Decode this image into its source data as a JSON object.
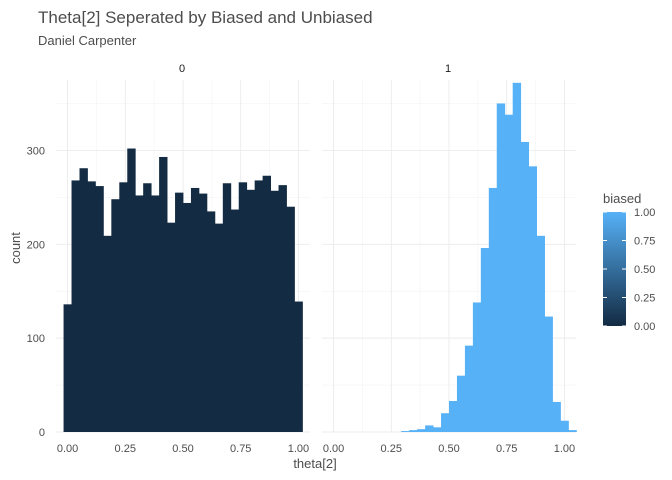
{
  "chart_data": {
    "type": "bar",
    "title": "Theta[2] Seperated by Biased and Unbiased",
    "subtitle": "Daniel Carpenter",
    "xlabel": "theta[2]",
    "ylabel": "count",
    "xlim": [
      -0.05,
      1.05
    ],
    "ylim": [
      0,
      375
    ],
    "x_ticks": [
      0,
      0.25,
      0.5,
      0.75,
      1
    ],
    "x_tick_labels": [
      "0.00",
      "0.25",
      "0.50",
      "0.75",
      "1.00"
    ],
    "y_ticks": [
      0,
      100,
      200,
      300
    ],
    "y_tick_labels": [
      "0",
      "100",
      "200",
      "300"
    ],
    "grid": true,
    "bin_width": 0.0345,
    "facets": [
      {
        "label": "0",
        "biased": 0,
        "color": "#132B43",
        "bins": [
          {
            "x": 0.0,
            "count": 136
          },
          {
            "x": 0.0345,
            "count": 268
          },
          {
            "x": 0.069,
            "count": 281
          },
          {
            "x": 0.1034,
            "count": 267
          },
          {
            "x": 0.1379,
            "count": 262
          },
          {
            "x": 0.1724,
            "count": 209
          },
          {
            "x": 0.2069,
            "count": 248
          },
          {
            "x": 0.2414,
            "count": 266
          },
          {
            "x": 0.2759,
            "count": 302
          },
          {
            "x": 0.3103,
            "count": 252
          },
          {
            "x": 0.3448,
            "count": 265
          },
          {
            "x": 0.3793,
            "count": 252
          },
          {
            "x": 0.4138,
            "count": 293
          },
          {
            "x": 0.4483,
            "count": 223
          },
          {
            "x": 0.4828,
            "count": 255
          },
          {
            "x": 0.5172,
            "count": 244
          },
          {
            "x": 0.5517,
            "count": 260
          },
          {
            "x": 0.5862,
            "count": 254
          },
          {
            "x": 0.6207,
            "count": 235
          },
          {
            "x": 0.6552,
            "count": 222
          },
          {
            "x": 0.6897,
            "count": 265
          },
          {
            "x": 0.7241,
            "count": 237
          },
          {
            "x": 0.7586,
            "count": 266
          },
          {
            "x": 0.7931,
            "count": 258
          },
          {
            "x": 0.8276,
            "count": 268
          },
          {
            "x": 0.8621,
            "count": 273
          },
          {
            "x": 0.8966,
            "count": 257
          },
          {
            "x": 0.931,
            "count": 263
          },
          {
            "x": 0.9655,
            "count": 240
          },
          {
            "x": 1.0,
            "count": 139
          }
        ]
      },
      {
        "label": "1",
        "biased": 1,
        "color": "#56B1F7",
        "bins": [
          {
            "x": 0.3103,
            "count": 1
          },
          {
            "x": 0.3448,
            "count": 2
          },
          {
            "x": 0.3793,
            "count": 3
          },
          {
            "x": 0.4138,
            "count": 7
          },
          {
            "x": 0.4483,
            "count": 5
          },
          {
            "x": 0.4828,
            "count": 20
          },
          {
            "x": 0.5172,
            "count": 33
          },
          {
            "x": 0.5517,
            "count": 60
          },
          {
            "x": 0.5862,
            "count": 92
          },
          {
            "x": 0.6207,
            "count": 138
          },
          {
            "x": 0.6552,
            "count": 196
          },
          {
            "x": 0.6897,
            "count": 260
          },
          {
            "x": 0.7241,
            "count": 350
          },
          {
            "x": 0.7586,
            "count": 338
          },
          {
            "x": 0.7931,
            "count": 372
          },
          {
            "x": 0.8276,
            "count": 309
          },
          {
            "x": 0.8621,
            "count": 283
          },
          {
            "x": 0.8966,
            "count": 209
          },
          {
            "x": 0.931,
            "count": 123
          },
          {
            "x": 0.9655,
            "count": 32
          },
          {
            "x": 1.0,
            "count": 12
          },
          {
            "x": 1.0345,
            "count": 2
          }
        ]
      }
    ],
    "legend": {
      "title": "biased",
      "position": "right",
      "type": "colorbar",
      "low": 0,
      "high": 1,
      "low_color": "#132B43",
      "high_color": "#56B1F7",
      "ticks": [
        0,
        0.25,
        0.5,
        0.75,
        1
      ],
      "tick_labels": [
        "0.00",
        "0.25",
        "0.50",
        "0.75",
        "1.00"
      ]
    }
  }
}
